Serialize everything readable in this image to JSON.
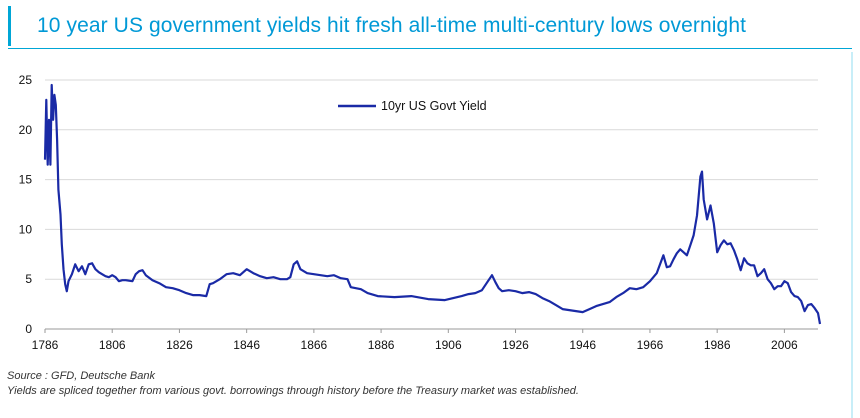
{
  "title": "10 year US government yields hit fresh all-time multi-century lows overnight",
  "source": "Source : GFD, Deutsche Bank",
  "note": "Yields are spliced together from various govt. borrowings through history before the Treasury market was established.",
  "colors": {
    "title": "#0099d6",
    "line": "#1a2aa6",
    "grid": "#d9d9d9"
  },
  "chart_data": {
    "type": "line",
    "grid": true,
    "legend_position": "top-center",
    "xlim": [
      1786,
      2016
    ],
    "ylim": [
      0,
      25
    ],
    "x_ticks": [
      1786,
      1806,
      1826,
      1846,
      1866,
      1886,
      1906,
      1926,
      1946,
      1966,
      1986,
      2006
    ],
    "y_ticks": [
      0,
      5,
      10,
      15,
      20,
      25
    ],
    "series": [
      {
        "name": "10yr US Govt Yield",
        "points": [
          [
            1786,
            17.0
          ],
          [
            1786.4,
            23.0
          ],
          [
            1786.8,
            16.5
          ],
          [
            1787.2,
            21.0
          ],
          [
            1787.6,
            16.5
          ],
          [
            1788,
            24.5
          ],
          [
            1788.4,
            21.0
          ],
          [
            1788.8,
            23.5
          ],
          [
            1789.2,
            22.5
          ],
          [
            1789.6,
            19.0
          ],
          [
            1790,
            14.0
          ],
          [
            1790.6,
            11.5
          ],
          [
            1791,
            8.5
          ],
          [
            1791.5,
            6.0
          ],
          [
            1792,
            4.5
          ],
          [
            1792.5,
            3.8
          ],
          [
            1793,
            4.8
          ],
          [
            1794,
            5.5
          ],
          [
            1795,
            6.5
          ],
          [
            1796,
            5.8
          ],
          [
            1797,
            6.3
          ],
          [
            1798,
            5.5
          ],
          [
            1799,
            6.5
          ],
          [
            1800,
            6.6
          ],
          [
            1801,
            6.0
          ],
          [
            1802,
            5.7
          ],
          [
            1803,
            5.5
          ],
          [
            1804,
            5.3
          ],
          [
            1805,
            5.2
          ],
          [
            1806,
            5.4
          ],
          [
            1807,
            5.2
          ],
          [
            1808,
            4.8
          ],
          [
            1809,
            4.9
          ],
          [
            1810,
            4.9
          ],
          [
            1812,
            4.8
          ],
          [
            1813,
            5.5
          ],
          [
            1814,
            5.8
          ],
          [
            1815,
            5.9
          ],
          [
            1816,
            5.4
          ],
          [
            1818,
            4.9
          ],
          [
            1820,
            4.6
          ],
          [
            1822,
            4.2
          ],
          [
            1824,
            4.1
          ],
          [
            1826,
            3.9
          ],
          [
            1828,
            3.6
          ],
          [
            1830,
            3.4
          ],
          [
            1832,
            3.4
          ],
          [
            1834,
            3.3
          ],
          [
            1835,
            4.5
          ],
          [
            1836,
            4.6
          ],
          [
            1838,
            5.0
          ],
          [
            1840,
            5.5
          ],
          [
            1842,
            5.6
          ],
          [
            1844,
            5.4
          ],
          [
            1846,
            6.0
          ],
          [
            1848,
            5.6
          ],
          [
            1850,
            5.3
          ],
          [
            1852,
            5.1
          ],
          [
            1854,
            5.2
          ],
          [
            1856,
            5.0
          ],
          [
            1858,
            5.0
          ],
          [
            1859,
            5.2
          ],
          [
            1860,
            6.5
          ],
          [
            1861,
            6.8
          ],
          [
            1862,
            6.0
          ],
          [
            1864,
            5.6
          ],
          [
            1866,
            5.5
          ],
          [
            1868,
            5.4
          ],
          [
            1870,
            5.3
          ],
          [
            1872,
            5.4
          ],
          [
            1874,
            5.1
          ],
          [
            1876,
            5.0
          ],
          [
            1877,
            4.2
          ],
          [
            1880,
            4.0
          ],
          [
            1882,
            3.6
          ],
          [
            1885,
            3.3
          ],
          [
            1890,
            3.2
          ],
          [
            1895,
            3.3
          ],
          [
            1900,
            3.0
          ],
          [
            1905,
            2.9
          ],
          [
            1910,
            3.3
          ],
          [
            1912,
            3.5
          ],
          [
            1914,
            3.6
          ],
          [
            1916,
            3.9
          ],
          [
            1918,
            4.9
          ],
          [
            1919,
            5.4
          ],
          [
            1920,
            4.7
          ],
          [
            1921,
            4.1
          ],
          [
            1922,
            3.8
          ],
          [
            1924,
            3.9
          ],
          [
            1926,
            3.8
          ],
          [
            1928,
            3.6
          ],
          [
            1930,
            3.7
          ],
          [
            1932,
            3.5
          ],
          [
            1934,
            3.1
          ],
          [
            1936,
            2.8
          ],
          [
            1938,
            2.4
          ],
          [
            1940,
            2.0
          ],
          [
            1942,
            1.9
          ],
          [
            1944,
            1.8
          ],
          [
            1946,
            1.7
          ],
          [
            1948,
            2.0
          ],
          [
            1950,
            2.3
          ],
          [
            1952,
            2.5
          ],
          [
            1954,
            2.7
          ],
          [
            1956,
            3.2
          ],
          [
            1958,
            3.6
          ],
          [
            1960,
            4.1
          ],
          [
            1962,
            4.0
          ],
          [
            1964,
            4.2
          ],
          [
            1966,
            4.8
          ],
          [
            1968,
            5.6
          ],
          [
            1970,
            7.4
          ],
          [
            1971,
            6.2
          ],
          [
            1972,
            6.3
          ],
          [
            1973,
            7.0
          ],
          [
            1974,
            7.6
          ],
          [
            1975,
            8.0
          ],
          [
            1976,
            7.7
          ],
          [
            1977,
            7.4
          ],
          [
            1978,
            8.4
          ],
          [
            1979,
            9.4
          ],
          [
            1980,
            11.4
          ],
          [
            1981,
            15.3
          ],
          [
            1981.5,
            15.8
          ],
          [
            1982,
            13.0
          ],
          [
            1983,
            11.0
          ],
          [
            1984,
            12.4
          ],
          [
            1985,
            10.6
          ],
          [
            1986,
            7.7
          ],
          [
            1987,
            8.4
          ],
          [
            1988,
            8.9
          ],
          [
            1989,
            8.5
          ],
          [
            1990,
            8.6
          ],
          [
            1991,
            7.9
          ],
          [
            1992,
            7.0
          ],
          [
            1993,
            5.9
          ],
          [
            1994,
            7.1
          ],
          [
            1995,
            6.6
          ],
          [
            1996,
            6.4
          ],
          [
            1997,
            6.4
          ],
          [
            1998,
            5.3
          ],
          [
            1999,
            5.6
          ],
          [
            2000,
            6.0
          ],
          [
            2001,
            5.0
          ],
          [
            2002,
            4.6
          ],
          [
            2003,
            4.0
          ],
          [
            2004,
            4.3
          ],
          [
            2005,
            4.3
          ],
          [
            2006,
            4.8
          ],
          [
            2007,
            4.6
          ],
          [
            2008,
            3.7
          ],
          [
            2009,
            3.3
          ],
          [
            2010,
            3.2
          ],
          [
            2011,
            2.8
          ],
          [
            2012,
            1.8
          ],
          [
            2013,
            2.4
          ],
          [
            2014,
            2.5
          ],
          [
            2015,
            2.1
          ],
          [
            2016,
            1.6
          ],
          [
            2016.6,
            0.5
          ]
        ]
      }
    ]
  }
}
